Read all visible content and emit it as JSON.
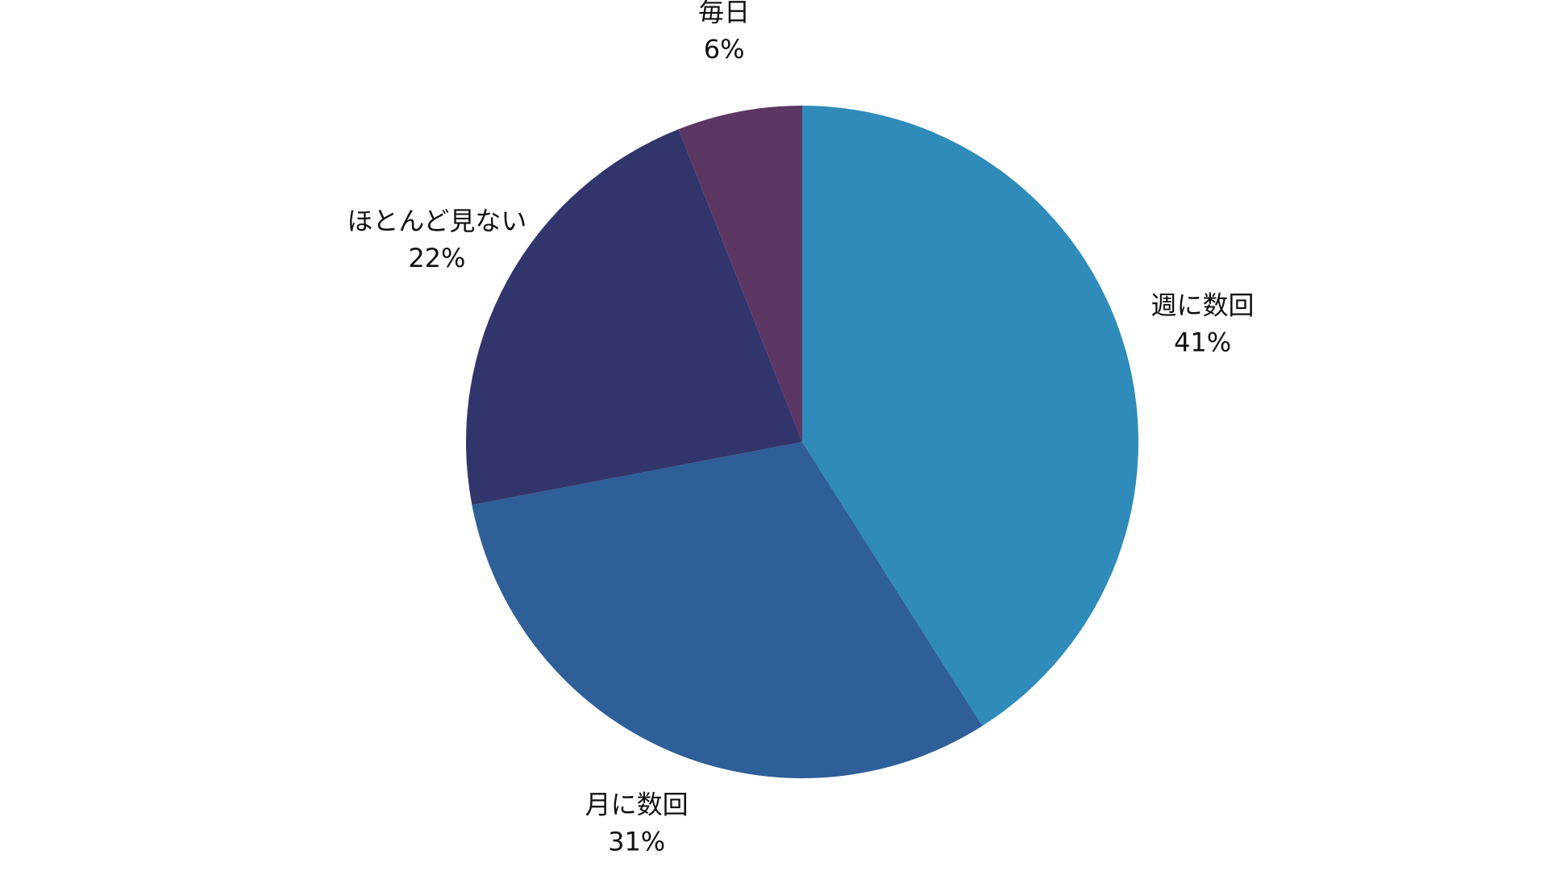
{
  "chart_data": {
    "type": "pie",
    "categories": [
      "週に数回",
      "月に数回",
      "ほとんど見ない",
      "毎日"
    ],
    "values": [
      41,
      31,
      22,
      6
    ],
    "value_labels": [
      "41%",
      "31%",
      "22%",
      "6%"
    ],
    "colors": [
      "#2e8bba",
      "#2e5f98",
      "#31356b",
      "#5c3764"
    ]
  }
}
